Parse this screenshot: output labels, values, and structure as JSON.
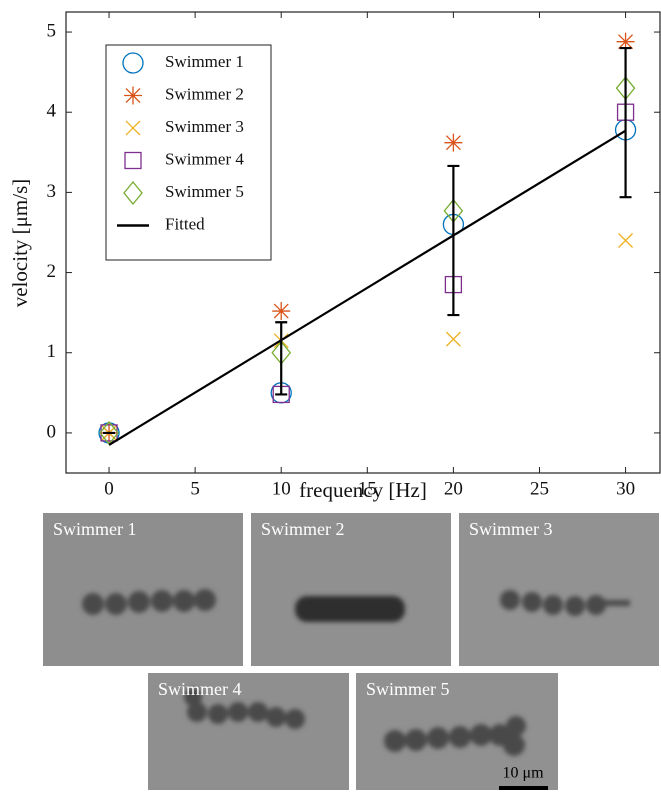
{
  "chart_data": {
    "type": "scatter",
    "x_label": "frequency [Hz]",
    "y_label": "velocity [μm/s]",
    "xlim": [
      -2.5,
      32
    ],
    "ylim": [
      -0.5,
      5.25
    ],
    "xticks": [
      0,
      5,
      10,
      15,
      20,
      25,
      30
    ],
    "yticks": [
      0,
      1,
      2,
      3,
      4,
      5
    ],
    "x": [
      0,
      10,
      20,
      30
    ],
    "series": [
      {
        "name": "Swimmer 1",
        "color": "#0072bd",
        "marker": "circle",
        "values": [
          0,
          0.5,
          2.6,
          3.78
        ]
      },
      {
        "name": "Swimmer 2",
        "color": "#d95319",
        "marker": "star",
        "values": [
          0,
          1.52,
          3.62,
          4.88
        ]
      },
      {
        "name": "Swimmer 3",
        "color": "#edb120",
        "marker": "x",
        "values": [
          0,
          1.15,
          1.17,
          2.4
        ]
      },
      {
        "name": "Swimmer 4",
        "color": "#7e2f8e",
        "marker": "square",
        "values": [
          0,
          0.48,
          1.85,
          4.0
        ]
      },
      {
        "name": "Swimmer 5",
        "color": "#77ac30",
        "marker": "diamond",
        "values": [
          0,
          1.0,
          2.77,
          4.3
        ]
      },
      {
        "name": "Fitted",
        "color": "#000000",
        "marker": "line",
        "x": [
          0,
          30
        ],
        "values": [
          -0.15,
          3.77
        ]
      }
    ],
    "error_bars": {
      "color": "#000000",
      "values": [
        0,
        0.93,
        2.4,
        3.87
      ],
      "errors": [
        0,
        0.45,
        0.93,
        0.93
      ]
    },
    "legend": "upper left"
  },
  "images": [
    {
      "label": "Swimmer 1"
    },
    {
      "label": "Swimmer 2"
    },
    {
      "label": "Swimmer 3"
    },
    {
      "label": "Swimmer 4"
    },
    {
      "label": "Swimmer 5"
    }
  ],
  "scale_bar": "10 μm"
}
